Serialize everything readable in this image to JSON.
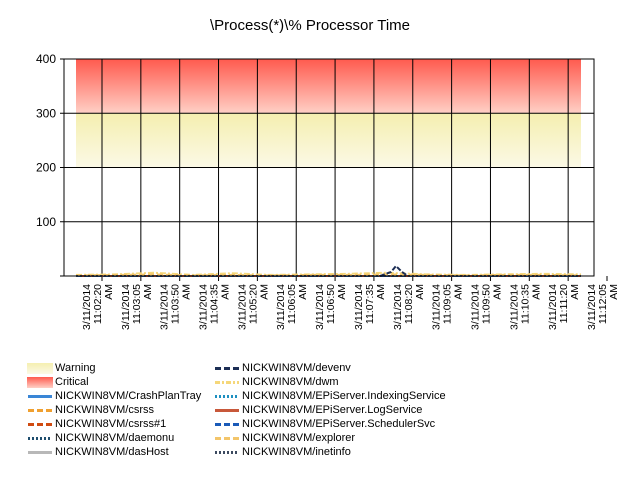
{
  "chart_data": {
    "type": "line",
    "title": "\\Process(*)\\% Processor Time",
    "ylim": [
      0,
      400
    ],
    "yticks": [
      0,
      100,
      200,
      300,
      400
    ],
    "ytick_labels": [
      "",
      "100",
      "200",
      "300",
      "400"
    ],
    "grid": true,
    "x": [
      "3/11/2014 11:02:20 AM",
      "3/11/2014 11:03:05 AM",
      "3/11/2014 11:03:50 AM",
      "3/11/2014 11:04:35 AM",
      "3/11/2014 11:05:20 AM",
      "3/11/2014 11:06:05 AM",
      "3/11/2014 11:06:50 AM",
      "3/11/2014 11:07:35 AM",
      "3/11/2014 11:08:20 AM",
      "3/11/2014 11:09:05 AM",
      "3/11/2014 11:09:50 AM",
      "3/11/2014 11:10:35 AM",
      "3/11/2014 11:11:20 AM",
      "3/11/2014 11:12:05 AM"
    ],
    "x_label_lines": [
      [
        "3/11/2014",
        "11:02:20",
        "AM"
      ],
      [
        "3/11/2014",
        "11:03:05",
        "AM"
      ],
      [
        "3/11/2014",
        "11:03:50",
        "AM"
      ],
      [
        "3/11/2014",
        "11:04:35",
        "AM"
      ],
      [
        "3/11/2014",
        "11:05:20",
        "AM"
      ],
      [
        "3/11/2014",
        "11:06:05",
        "AM"
      ],
      [
        "3/11/2014",
        "11:06:50",
        "AM"
      ],
      [
        "3/11/2014",
        "11:07:35",
        "AM"
      ],
      [
        "3/11/2014",
        "11:08:20",
        "AM"
      ],
      [
        "3/11/2014",
        "11:09:05",
        "AM"
      ],
      [
        "3/11/2014",
        "11:09:50",
        "AM"
      ],
      [
        "3/11/2014",
        "11:10:35",
        "AM"
      ],
      [
        "3/11/2014",
        "11:11:20",
        "AM"
      ],
      [
        "3/11/2014",
        "11:12:05",
        "AM"
      ]
    ],
    "bands": [
      {
        "name": "Warning",
        "from": 200,
        "to": 300,
        "color_top": "#f5efb0",
        "color_bottom": "#fbf9e6"
      },
      {
        "name": "Critical",
        "from": 300,
        "to": 400,
        "color_top": "#ff5a4e",
        "color_bottom": "#ffd0c6"
      }
    ],
    "legend_position": "bottom",
    "series": [
      {
        "name": "NICKWIN8VM/CrashPlanTray",
        "color": "#3a86d6",
        "dash": "solid",
        "values": [
          0,
          0,
          0,
          0,
          0,
          0,
          0,
          0,
          0,
          0,
          0,
          0,
          0,
          0
        ]
      },
      {
        "name": "NICKWIN8VM/csrss",
        "color": "#f0a030",
        "dash": "dash",
        "values": [
          0,
          1,
          1,
          0,
          1,
          0,
          1,
          0,
          1,
          0,
          1,
          0,
          0,
          1
        ]
      },
      {
        "name": "NICKWIN8VM/csrss#1",
        "color": "#d04a10",
        "dash": "dash",
        "values": [
          0,
          0,
          0,
          0,
          0,
          0,
          0,
          0,
          0,
          0,
          0,
          0,
          0,
          0
        ]
      },
      {
        "name": "NICKWIN8VM/daemonu",
        "color": "#1f4e6e",
        "dash": "dot",
        "values": [
          0,
          0,
          0,
          0,
          0,
          0,
          0,
          0,
          0,
          0,
          0,
          0,
          0,
          0
        ]
      },
      {
        "name": "NICKWIN8VM/dasHost",
        "color": "#b8b8b8",
        "dash": "solid",
        "values": [
          0,
          0,
          0,
          0,
          0,
          0,
          0,
          0,
          0,
          0,
          0,
          0,
          0,
          0
        ]
      },
      {
        "name": "NICKWIN8VM/devenv",
        "color": "#1c2e55",
        "dash": "dash",
        "values": [
          0,
          0,
          0,
          0,
          0,
          0,
          0,
          0,
          0,
          0,
          0,
          0,
          0,
          0
        ]
      },
      {
        "name": "NICKWIN8VM/dwm",
        "color": "#f5d77a",
        "dash": "dashdot",
        "values": [
          2,
          3,
          6,
          2,
          5,
          2,
          3,
          4,
          6,
          3,
          2,
          3,
          4,
          3
        ]
      },
      {
        "name": "NICKWIN8VM/EPiServer.IndexingService",
        "color": "#1e90c0",
        "dash": "dot",
        "values": [
          0,
          0,
          0,
          0,
          0,
          0,
          0,
          0,
          0,
          0,
          0,
          0,
          0,
          0
        ]
      },
      {
        "name": "NICKWIN8VM/EPiServer.LogService",
        "color": "#c8583a",
        "dash": "solid",
        "values": [
          0,
          0,
          0,
          0,
          0,
          0,
          0,
          0,
          0,
          0,
          0,
          0,
          0,
          0
        ]
      },
      {
        "name": "NICKWIN8VM/EPiServer.SchedulerSvc",
        "color": "#1a5ab8",
        "dash": "dash",
        "values": [
          0,
          0,
          0,
          0,
          0,
          0,
          0,
          0,
          0,
          0,
          0,
          0,
          0,
          0
        ]
      },
      {
        "name": "NICKWIN8VM/explorer",
        "color": "#f3c56a",
        "dash": "dash",
        "values": [
          1,
          2,
          3,
          1,
          2,
          1,
          2,
          2,
          3,
          2,
          1,
          2,
          2,
          1
        ]
      },
      {
        "name": "NICKWIN8VM/inetinfo",
        "color": "#3c4a60",
        "dash": "dot",
        "values": [
          0,
          0,
          0,
          0,
          0,
          0,
          0,
          0,
          0,
          0,
          0,
          0,
          0,
          0
        ]
      }
    ]
  }
}
